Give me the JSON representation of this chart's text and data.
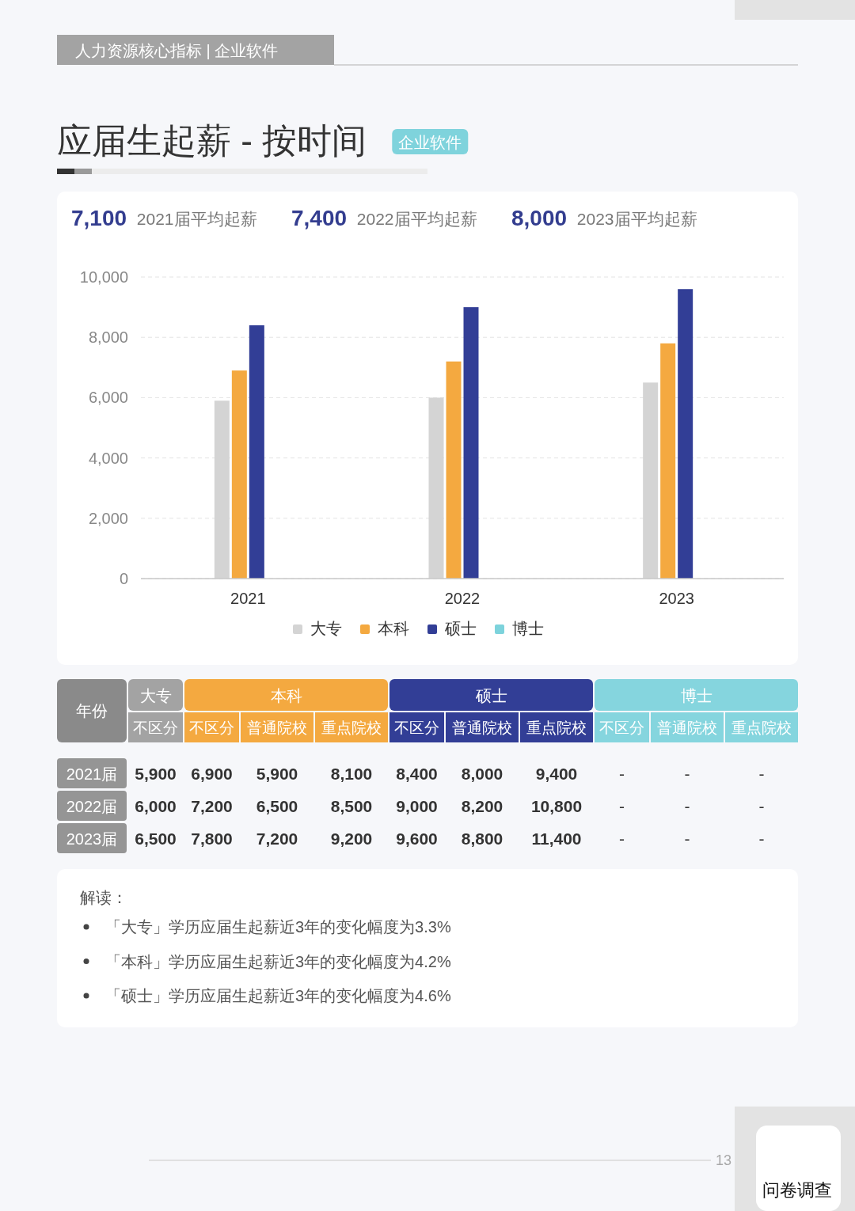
{
  "chart_data": [
    {
      "type": "bar",
      "title": "应届生起薪 - 按时间",
      "subtitle": "企业软件",
      "annotations": [
        "人力资源核心指标 | 企业软件",
        "7,100",
        "2021届平均起薪",
        "7,400",
        "2022届平均起薪",
        "8,000",
        "2023届平均起薪"
      ],
      "categories": [
        "2021",
        "2022",
        "2023"
      ],
      "series": [
        {
          "name": "大专",
          "color": "#d4d4d4",
          "values": [
            5900,
            6000,
            6500
          ]
        },
        {
          "name": "本科",
          "color": "#f4a940",
          "values": [
            6900,
            7200,
            7800
          ]
        },
        {
          "name": "硕士",
          "color": "#323e96",
          "values": [
            8400,
            9000,
            9600
          ]
        },
        {
          "name": "博士",
          "color": "#7dd3dc",
          "values": [
            null,
            null,
            null
          ]
        }
      ],
      "ylim": [
        0,
        10000
      ],
      "yticks": [
        {
          "value": 0,
          "label": "0"
        },
        {
          "value": 2000,
          "label": "2,000"
        },
        {
          "value": 4000,
          "label": "4,000"
        },
        {
          "value": 6000,
          "label": "6,000"
        },
        {
          "value": 8000,
          "label": "8,000"
        },
        {
          "value": 10000,
          "label": "10,000"
        }
      ],
      "grid": "y",
      "legend": "bottom"
    },
    {
      "type": "other",
      "ylabel": "年份",
      "annotations": [
        "大专",
        "本科",
        "硕士",
        "博士"
      ],
      "categories": [
        "不区分",
        "不区分",
        "普通院校",
        "重点院校",
        "不区分",
        "普通院校",
        "重点院校",
        "不区分",
        "普通院校",
        "重点院校"
      ],
      "colors": [
        "#a3a3a3",
        "#f4a940",
        "#f4a940",
        "#f4a940",
        "#323e96",
        "#323e96",
        "#323e96",
        "#85d5de",
        "#85d5de",
        "#85d5de"
      ],
      "series": [
        {
          "name": "2021届",
          "values": [
            5900,
            6900,
            5900,
            8100,
            8400,
            8000,
            9400,
            null,
            null,
            null
          ],
          "value_labels": [
            "5,900",
            "6,900",
            "5,900",
            "8,100",
            "8,400",
            "8,000",
            "9,400",
            "-",
            "-",
            "-"
          ]
        },
        {
          "name": "2022届",
          "values": [
            6000,
            7200,
            6500,
            8500,
            9000,
            8200,
            10800,
            null,
            null,
            null
          ],
          "value_labels": [
            "6,000",
            "7,200",
            "6,500",
            "8,500",
            "9,000",
            "8,200",
            "10,800",
            "-",
            "-",
            "-"
          ]
        },
        {
          "name": "2023届",
          "values": [
            6500,
            7800,
            7200,
            9200,
            9600,
            8800,
            11400,
            null,
            null,
            null
          ],
          "value_labels": [
            "6,500",
            "7,800",
            "7,200",
            "9,200",
            "9,600",
            "8,800",
            "11,400",
            "-",
            "-",
            "-"
          ]
        }
      ]
    },
    {
      "type": "other",
      "title": "解读：",
      "annotations": [
        "「大专」学历应届生起薪近3年的变化幅度为3.3%",
        "「本科」学历应届生起薪近3年的变化幅度为4.2%",
        "「硕士」学历应届生起薪近3年的变化幅度为4.6%"
      ]
    },
    {
      "type": "other",
      "annotations": [
        "13",
        "问卷调查"
      ]
    }
  ]
}
